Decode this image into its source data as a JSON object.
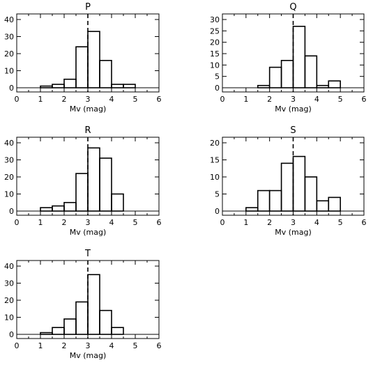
{
  "chart_data": [
    {
      "type": "histogram",
      "title": "P",
      "xlabel": "Mv (mag)",
      "ylabel": "",
      "xlim": [
        0,
        6
      ],
      "ylim": [
        0,
        40
      ],
      "xticks": [
        0,
        1,
        2,
        3,
        4,
        5,
        6
      ],
      "yticks": [
        0,
        10,
        20,
        30,
        40
      ],
      "bin_width": 0.5,
      "bin_starts": [
        1.0,
        1.5,
        2.0,
        2.5,
        3.0,
        3.5,
        4.0,
        4.5
      ],
      "values": [
        1,
        2,
        5,
        24,
        33,
        16,
        2,
        2
      ],
      "reference_line_x": 3,
      "grid": false
    },
    {
      "type": "histogram",
      "title": "Q",
      "xlabel": "Mv (mag)",
      "ylabel": "",
      "xlim": [
        0,
        6
      ],
      "ylim": [
        0,
        30
      ],
      "xticks": [
        0,
        1,
        2,
        3,
        4,
        5,
        6
      ],
      "yticks": [
        0,
        5,
        10,
        15,
        20,
        25,
        30
      ],
      "bin_width": 0.5,
      "bin_starts": [
        1.5,
        2.0,
        2.5,
        3.0,
        3.5,
        4.0,
        4.5
      ],
      "values": [
        1,
        9,
        12,
        27,
        14,
        1,
        3
      ],
      "reference_line_x": 3,
      "grid": false
    },
    {
      "type": "histogram",
      "title": "R",
      "xlabel": "Mv (mag)",
      "ylabel": "",
      "xlim": [
        0,
        6
      ],
      "ylim": [
        0,
        40
      ],
      "xticks": [
        0,
        1,
        2,
        3,
        4,
        5,
        6
      ],
      "yticks": [
        0,
        10,
        20,
        30,
        40
      ],
      "bin_width": 0.5,
      "bin_starts": [
        1.0,
        1.5,
        2.0,
        2.5,
        3.0,
        3.5,
        4.0
      ],
      "values": [
        2,
        3,
        5,
        22,
        37,
        31,
        10
      ],
      "reference_line_x": 3,
      "grid": false
    },
    {
      "type": "histogram",
      "title": "S",
      "xlabel": "Mv (mag)",
      "ylabel": "",
      "xlim": [
        0,
        6
      ],
      "ylim": [
        0,
        20
      ],
      "xticks": [
        0,
        1,
        2,
        3,
        4,
        5,
        6
      ],
      "yticks": [
        0,
        5,
        10,
        15,
        20
      ],
      "bin_width": 0.5,
      "bin_starts": [
        1.0,
        1.5,
        2.0,
        2.5,
        3.0,
        3.5,
        4.0,
        4.5
      ],
      "values": [
        1,
        6,
        6,
        14,
        16,
        10,
        3,
        4
      ],
      "reference_line_x": 3,
      "grid": false
    },
    {
      "type": "histogram",
      "title": "T",
      "xlabel": "Mv (mag)",
      "ylabel": "",
      "xlim": [
        0,
        6
      ],
      "ylim": [
        0,
        40
      ],
      "xticks": [
        0,
        1,
        2,
        3,
        4,
        5,
        6
      ],
      "yticks": [
        0,
        10,
        20,
        30,
        40
      ],
      "bin_width": 0.5,
      "bin_starts": [
        1.0,
        1.5,
        2.0,
        2.5,
        3.0,
        3.5,
        4.0
      ],
      "values": [
        1,
        4,
        9,
        19,
        35,
        14,
        4
      ],
      "reference_line_x": 3,
      "grid": false
    }
  ]
}
